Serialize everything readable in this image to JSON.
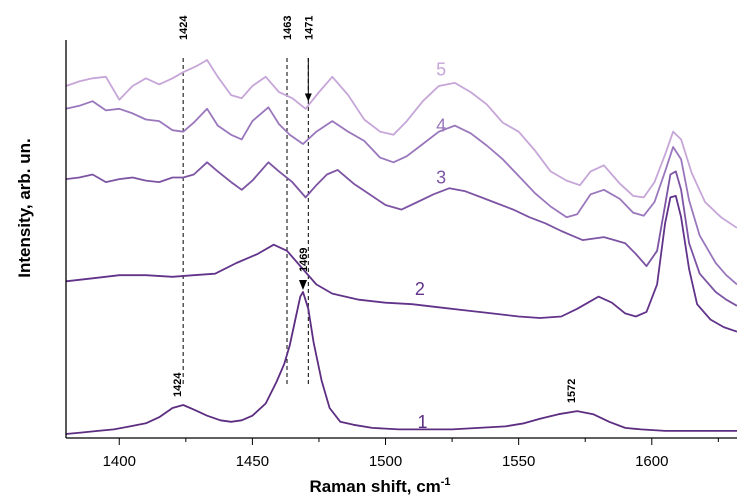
{
  "chart_data": {
    "type": "line",
    "xlabel": "Raman shift, cm",
    "xlabel_sup": "-1",
    "ylabel": "Intensity, arb. un.",
    "xlim": [
      1380,
      1632
    ],
    "xticks": [
      1400,
      1450,
      1500,
      1550,
      1600
    ],
    "xtick_labels": [
      "1400",
      "1450",
      "1500",
      "1550",
      "1600"
    ],
    "legend": "none",
    "grid": false,
    "series": [
      {
        "name": "1",
        "color": "#5c2d80",
        "points": [
          [
            1380,
            0.0
          ],
          [
            1386,
            0.01
          ],
          [
            1392,
            0.02
          ],
          [
            1398,
            0.03
          ],
          [
            1404,
            0.05
          ],
          [
            1410,
            0.07
          ],
          [
            1415,
            0.11
          ],
          [
            1420,
            0.17
          ],
          [
            1424,
            0.19
          ],
          [
            1428,
            0.16
          ],
          [
            1433,
            0.12
          ],
          [
            1438,
            0.09
          ],
          [
            1442,
            0.08
          ],
          [
            1446,
            0.09
          ],
          [
            1450,
            0.12
          ],
          [
            1455,
            0.2
          ],
          [
            1459,
            0.34
          ],
          [
            1462,
            0.46
          ],
          [
            1464,
            0.58
          ],
          [
            1466,
            0.74
          ],
          [
            1468,
            0.9
          ],
          [
            1469,
            0.93
          ],
          [
            1471,
            0.82
          ],
          [
            1473,
            0.6
          ],
          [
            1476,
            0.35
          ],
          [
            1479,
            0.17
          ],
          [
            1483,
            0.08
          ],
          [
            1488,
            0.06
          ],
          [
            1495,
            0.04
          ],
          [
            1505,
            0.03
          ],
          [
            1515,
            0.03
          ],
          [
            1525,
            0.03
          ],
          [
            1535,
            0.04
          ],
          [
            1545,
            0.05
          ],
          [
            1552,
            0.07
          ],
          [
            1558,
            0.1
          ],
          [
            1565,
            0.13
          ],
          [
            1572,
            0.15
          ],
          [
            1578,
            0.13
          ],
          [
            1584,
            0.08
          ],
          [
            1590,
            0.04
          ],
          [
            1596,
            0.03
          ],
          [
            1605,
            0.02
          ],
          [
            1615,
            0.02
          ],
          [
            1625,
            0.02
          ],
          [
            1632,
            0.02
          ]
        ]
      },
      {
        "name": "2",
        "color": "#61338a",
        "points": [
          [
            1380,
            1.0
          ],
          [
            1390,
            1.02
          ],
          [
            1400,
            1.04
          ],
          [
            1410,
            1.04
          ],
          [
            1420,
            1.03
          ],
          [
            1428,
            1.04
          ],
          [
            1436,
            1.05
          ],
          [
            1444,
            1.12
          ],
          [
            1452,
            1.18
          ],
          [
            1458,
            1.24
          ],
          [
            1463,
            1.2
          ],
          [
            1468,
            1.1
          ],
          [
            1474,
            0.98
          ],
          [
            1480,
            0.92
          ],
          [
            1490,
            0.88
          ],
          [
            1500,
            0.86
          ],
          [
            1510,
            0.85
          ],
          [
            1520,
            0.83
          ],
          [
            1530,
            0.81
          ],
          [
            1540,
            0.79
          ],
          [
            1550,
            0.77
          ],
          [
            1558,
            0.76
          ],
          [
            1566,
            0.77
          ],
          [
            1572,
            0.82
          ],
          [
            1576,
            0.86
          ],
          [
            1580,
            0.9
          ],
          [
            1585,
            0.86
          ],
          [
            1590,
            0.79
          ],
          [
            1594,
            0.77
          ],
          [
            1598,
            0.8
          ],
          [
            1602,
            0.98
          ],
          [
            1605,
            1.38
          ],
          [
            1607,
            1.55
          ],
          [
            1609,
            1.56
          ],
          [
            1611,
            1.42
          ],
          [
            1614,
            1.08
          ],
          [
            1617,
            0.85
          ],
          [
            1622,
            0.75
          ],
          [
            1627,
            0.7
          ],
          [
            1632,
            0.67
          ]
        ]
      },
      {
        "name": "3",
        "color": "#7c54a3",
        "points": [
          [
            1380,
            1.67
          ],
          [
            1385,
            1.68
          ],
          [
            1390,
            1.7
          ],
          [
            1395,
            1.65
          ],
          [
            1400,
            1.67
          ],
          [
            1405,
            1.68
          ],
          [
            1410,
            1.66
          ],
          [
            1415,
            1.65
          ],
          [
            1420,
            1.68
          ],
          [
            1424,
            1.68
          ],
          [
            1428,
            1.7
          ],
          [
            1433,
            1.78
          ],
          [
            1437,
            1.72
          ],
          [
            1442,
            1.65
          ],
          [
            1446,
            1.6
          ],
          [
            1450,
            1.66
          ],
          [
            1456,
            1.78
          ],
          [
            1460,
            1.72
          ],
          [
            1465,
            1.65
          ],
          [
            1470,
            1.55
          ],
          [
            1474,
            1.63
          ],
          [
            1478,
            1.7
          ],
          [
            1482,
            1.73
          ],
          [
            1488,
            1.64
          ],
          [
            1494,
            1.57
          ],
          [
            1500,
            1.5
          ],
          [
            1506,
            1.47
          ],
          [
            1512,
            1.52
          ],
          [
            1518,
            1.57
          ],
          [
            1524,
            1.61
          ],
          [
            1530,
            1.59
          ],
          [
            1536,
            1.55
          ],
          [
            1542,
            1.51
          ],
          [
            1548,
            1.47
          ],
          [
            1554,
            1.42
          ],
          [
            1560,
            1.38
          ],
          [
            1566,
            1.33
          ],
          [
            1570,
            1.3
          ],
          [
            1574,
            1.27
          ],
          [
            1578,
            1.28
          ],
          [
            1582,
            1.29
          ],
          [
            1586,
            1.27
          ],
          [
            1590,
            1.25
          ],
          [
            1594,
            1.18
          ],
          [
            1598,
            1.1
          ],
          [
            1602,
            1.2
          ],
          [
            1605,
            1.5
          ],
          [
            1607,
            1.7
          ],
          [
            1609,
            1.72
          ],
          [
            1611,
            1.6
          ],
          [
            1614,
            1.25
          ],
          [
            1618,
            1.05
          ],
          [
            1624,
            0.93
          ],
          [
            1628,
            0.88
          ],
          [
            1632,
            0.84
          ]
        ]
      },
      {
        "name": "4",
        "color": "#9a77bd",
        "points": [
          [
            1380,
            2.13
          ],
          [
            1385,
            2.15
          ],
          [
            1390,
            2.18
          ],
          [
            1395,
            2.12
          ],
          [
            1400,
            2.13
          ],
          [
            1405,
            2.1
          ],
          [
            1410,
            2.06
          ],
          [
            1415,
            2.05
          ],
          [
            1420,
            1.99
          ],
          [
            1424,
            1.98
          ],
          [
            1428,
            2.04
          ],
          [
            1433,
            2.13
          ],
          [
            1437,
            2.02
          ],
          [
            1442,
            1.96
          ],
          [
            1446,
            1.93
          ],
          [
            1450,
            2.05
          ],
          [
            1456,
            2.14
          ],
          [
            1460,
            2.03
          ],
          [
            1464,
            1.96
          ],
          [
            1469,
            1.9
          ],
          [
            1474,
            1.98
          ],
          [
            1480,
            2.05
          ],
          [
            1486,
            1.98
          ],
          [
            1492,
            1.92
          ],
          [
            1498,
            1.81
          ],
          [
            1503,
            1.78
          ],
          [
            1508,
            1.82
          ],
          [
            1514,
            1.9
          ],
          [
            1520,
            1.98
          ],
          [
            1526,
            2.02
          ],
          [
            1532,
            1.97
          ],
          [
            1538,
            1.89
          ],
          [
            1544,
            1.8
          ],
          [
            1550,
            1.69
          ],
          [
            1556,
            1.58
          ],
          [
            1562,
            1.49
          ],
          [
            1568,
            1.42
          ],
          [
            1572,
            1.44
          ],
          [
            1577,
            1.57
          ],
          [
            1582,
            1.6
          ],
          [
            1588,
            1.54
          ],
          [
            1593,
            1.45
          ],
          [
            1597,
            1.43
          ],
          [
            1601,
            1.52
          ],
          [
            1605,
            1.72
          ],
          [
            1608,
            1.88
          ],
          [
            1611,
            1.8
          ],
          [
            1614,
            1.53
          ],
          [
            1618,
            1.3
          ],
          [
            1624,
            1.12
          ],
          [
            1628,
            1.04
          ],
          [
            1632,
            0.98
          ]
        ]
      },
      {
        "name": "5",
        "color": "#c6a6d8",
        "points": [
          [
            1380,
            2.28
          ],
          [
            1385,
            2.31
          ],
          [
            1390,
            2.33
          ],
          [
            1395,
            2.34
          ],
          [
            1400,
            2.19
          ],
          [
            1405,
            2.28
          ],
          [
            1410,
            2.33
          ],
          [
            1415,
            2.29
          ],
          [
            1420,
            2.33
          ],
          [
            1424,
            2.37
          ],
          [
            1429,
            2.41
          ],
          [
            1433,
            2.45
          ],
          [
            1437,
            2.34
          ],
          [
            1442,
            2.22
          ],
          [
            1446,
            2.2
          ],
          [
            1450,
            2.28
          ],
          [
            1455,
            2.34
          ],
          [
            1460,
            2.24
          ],
          [
            1465,
            2.2
          ],
          [
            1470,
            2.13
          ],
          [
            1475,
            2.24
          ],
          [
            1480,
            2.34
          ],
          [
            1486,
            2.22
          ],
          [
            1492,
            2.06
          ],
          [
            1498,
            1.98
          ],
          [
            1503,
            1.96
          ],
          [
            1508,
            2.05
          ],
          [
            1514,
            2.18
          ],
          [
            1520,
            2.28
          ],
          [
            1526,
            2.3
          ],
          [
            1532,
            2.24
          ],
          [
            1538,
            2.16
          ],
          [
            1544,
            2.04
          ],
          [
            1550,
            1.98
          ],
          [
            1556,
            1.86
          ],
          [
            1562,
            1.72
          ],
          [
            1568,
            1.66
          ],
          [
            1573,
            1.63
          ],
          [
            1577,
            1.72
          ],
          [
            1582,
            1.76
          ],
          [
            1588,
            1.64
          ],
          [
            1593,
            1.56
          ],
          [
            1597,
            1.55
          ],
          [
            1601,
            1.65
          ],
          [
            1605,
            1.83
          ],
          [
            1608,
            1.98
          ],
          [
            1611,
            1.93
          ],
          [
            1615,
            1.71
          ],
          [
            1620,
            1.52
          ],
          [
            1626,
            1.42
          ],
          [
            1632,
            1.35
          ]
        ]
      }
    ],
    "series_labels": [
      {
        "text": "1",
        "x": 1512,
        "y": 0.04,
        "color": "#5c2d80"
      },
      {
        "text": "2",
        "x": 1511,
        "y": 0.91,
        "color": "#61338a"
      },
      {
        "text": "3",
        "x": 1519,
        "y": 1.64,
        "color": "#7c54a3"
      },
      {
        "text": "4",
        "x": 1519,
        "y": 1.98,
        "color": "#9a77bd"
      },
      {
        "text": "5",
        "x": 1519,
        "y": 2.35,
        "color": "#c6a6d8"
      }
    ],
    "dashed_lines": [
      1424,
      1463,
      1471
    ],
    "peak_annotations": [
      {
        "label": "1424",
        "x": 1424,
        "series": 5,
        "position": "top"
      },
      {
        "label": "1463",
        "x": 1463,
        "series": 5,
        "position": "top"
      },
      {
        "label": "1471",
        "x": 1471,
        "series": 5,
        "position": "top-arrow"
      },
      {
        "label": "1469",
        "x": 1469,
        "series": 1,
        "position": "arrow"
      },
      {
        "label": "1424",
        "x": 1424,
        "series": 1,
        "position": "above-peak"
      },
      {
        "label": "1572",
        "x": 1572,
        "series": 1,
        "position": "above-peak"
      }
    ]
  }
}
